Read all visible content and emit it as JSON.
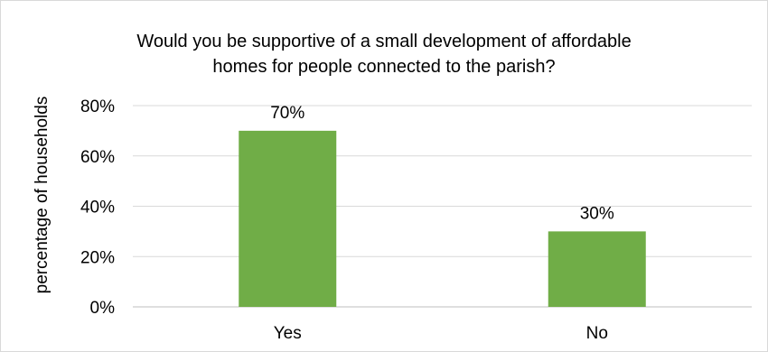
{
  "chart_data": {
    "type": "bar",
    "title_lines": [
      "Would you be supportive of a small development of affordable",
      "homes for people connected to the parish?"
    ],
    "xlabel": "",
    "ylabel": "percentage of households",
    "categories": [
      "Yes",
      "No"
    ],
    "values": [
      70,
      30
    ],
    "data_labels": [
      "70%",
      "30%"
    ],
    "ylim": [
      0,
      80
    ],
    "yticks": [
      0,
      20,
      40,
      60,
      80
    ],
    "ytick_labels": [
      "0%",
      "20%",
      "40%",
      "60%",
      "80%"
    ],
    "grid": true,
    "legend": "none",
    "bar_color": "#70ad47",
    "grid_color": "#d9d9d9"
  }
}
